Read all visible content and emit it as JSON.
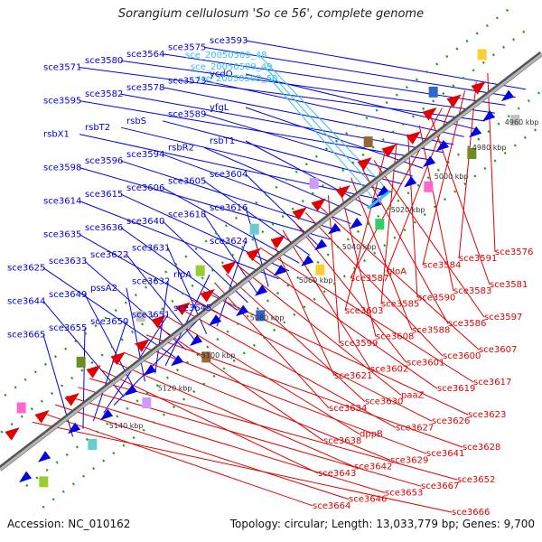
{
  "title": "Sorangium cellulosum 'So ce 56', complete genome",
  "footer": {
    "accession": "Accession: NC_010162",
    "summary": "Topology: circular; Length: 13,033,779 bp; Genes: 9,700"
  },
  "colors": {
    "forward": "#0000e0",
    "reverse": "#e00000",
    "rna": "#2ec4ee",
    "backbone": "#888888",
    "dots": "#229922"
  },
  "ticks": [
    "4960 kbp",
    "4980 kbp",
    "5000 kbp",
    "5020 kbp",
    "5040 kbp",
    "5060 kbp",
    "5080 kbp",
    "5100 kbp",
    "5120 kbp",
    "5140 kbp"
  ],
  "forward_labels": [
    "sce3593",
    "sce3575",
    "sce3564",
    "sce3580",
    "sce3571",
    "ycdO",
    "sce3573",
    "sce3578",
    "sce3582",
    "sce3595",
    "yfgL",
    "sce3589",
    "rsbS",
    "rsbT2",
    "rsbX1",
    "rsbT1",
    "rsbR2",
    "sce3594",
    "sce3596",
    "sce3598",
    "sce3604",
    "sce3605",
    "sce3606",
    "sce3615",
    "sce3614",
    "sce3616",
    "sce3618",
    "sce3640",
    "sce3636",
    "sce3635",
    "sce3624",
    "sce3631",
    "sce3622",
    "sce3633",
    "sce3625",
    "rlpA",
    "sce3632",
    "pssA2",
    "sce3649",
    "sce3644",
    "sce3645",
    "sce3651",
    "sce3650",
    "sce3655",
    "sce3665"
  ],
  "rna_labels": [
    "sce_20050509_48",
    "sce_20050509_49",
    "sce_20050509_50"
  ],
  "reverse_labels": [
    "sce3576",
    "sce3591",
    "sce3584",
    "gloA",
    "sce3587",
    "sce3581",
    "sce3583",
    "sce3590",
    "sce3585",
    "sce3603",
    "sce3597",
    "sce3586",
    "sce3588",
    "sce3608",
    "sce3599",
    "sce3607",
    "sce3600",
    "sce3601",
    "sce3602",
    "sce3621",
    "sce3617",
    "sce3619",
    "paaZ",
    "sce3630",
    "sce3634",
    "sce3623",
    "sce3626",
    "sce3627",
    "dppB",
    "sce3638",
    "sce3628",
    "sce3641",
    "sce3629",
    "sce3642",
    "sce3643",
    "sce3652",
    "sce3667",
    "sce3653",
    "sce3646",
    "sce3664",
    "sce3666"
  ]
}
